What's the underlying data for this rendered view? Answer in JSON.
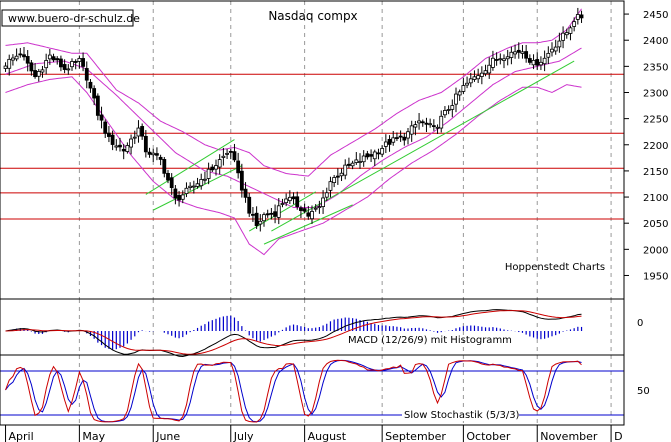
{
  "chart_data": [
    {
      "type": "candlestick",
      "title": "Nasdaq compx",
      "watermark": "www.buero-dr-schulz.de",
      "source_label": "Hoppenstedt Charts",
      "yticks": [
        1950,
        2000,
        2050,
        2100,
        2150,
        2200,
        2250,
        2300,
        2350,
        2400,
        2450
      ],
      "ylim": [
        1905,
        2475
      ],
      "horizontal_levels": [
        2335,
        2222,
        2155,
        2108,
        2058
      ],
      "months": [
        "April",
        "May",
        "June",
        "July",
        "August",
        "September",
        "October",
        "November",
        "D"
      ],
      "month_starts": [
        0,
        20,
        40,
        61,
        81,
        102,
        124,
        144,
        164
      ],
      "n_bars": 166,
      "x_range": [
        -1.5,
        167.5
      ],
      "close_anchors": [
        [
          0,
          2355
        ],
        [
          4,
          2375
        ],
        [
          8,
          2330
        ],
        [
          12,
          2370
        ],
        [
          16,
          2345
        ],
        [
          20,
          2360
        ],
        [
          22,
          2330
        ],
        [
          25,
          2260
        ],
        [
          28,
          2210
        ],
        [
          32,
          2190
        ],
        [
          36,
          2230
        ],
        [
          38,
          2190
        ],
        [
          42,
          2170
        ],
        [
          46,
          2095
        ],
        [
          50,
          2115
        ],
        [
          54,
          2140
        ],
        [
          58,
          2170
        ],
        [
          61,
          2190
        ],
        [
          63,
          2140
        ],
        [
          66,
          2075
        ],
        [
          68,
          2045
        ],
        [
          70,
          2065
        ],
        [
          73,
          2070
        ],
        [
          76,
          2100
        ],
        [
          80,
          2080
        ],
        [
          82,
          2065
        ],
        [
          85,
          2080
        ],
        [
          88,
          2130
        ],
        [
          92,
          2155
        ],
        [
          96,
          2170
        ],
        [
          100,
          2185
        ],
        [
          104,
          2205
        ],
        [
          108,
          2215
        ],
        [
          112,
          2245
        ],
        [
          116,
          2230
        ],
        [
          120,
          2270
        ],
        [
          124,
          2310
        ],
        [
          128,
          2335
        ],
        [
          132,
          2360
        ],
        [
          136,
          2375
        ],
        [
          140,
          2380
        ],
        [
          143,
          2355
        ],
        [
          146,
          2365
        ],
        [
          148,
          2385
        ],
        [
          150,
          2400
        ],
        [
          152,
          2415
        ],
        [
          154,
          2440
        ],
        [
          156,
          2445
        ]
      ],
      "upper_band_anchors": [
        [
          0,
          2390
        ],
        [
          6,
          2395
        ],
        [
          12,
          2385
        ],
        [
          18,
          2375
        ],
        [
          22,
          2375
        ],
        [
          26,
          2340
        ],
        [
          30,
          2305
        ],
        [
          36,
          2280
        ],
        [
          42,
          2245
        ],
        [
          48,
          2225
        ],
        [
          54,
          2200
        ],
        [
          58,
          2190
        ],
        [
          62,
          2195
        ],
        [
          66,
          2185
        ],
        [
          70,
          2160
        ],
        [
          76,
          2145
        ],
        [
          82,
          2140
        ],
        [
          88,
          2180
        ],
        [
          94,
          2205
        ],
        [
          100,
          2230
        ],
        [
          106,
          2260
        ],
        [
          112,
          2285
        ],
        [
          118,
          2300
        ],
        [
          124,
          2330
        ],
        [
          130,
          2365
        ],
        [
          136,
          2385
        ],
        [
          140,
          2395
        ],
        [
          144,
          2395
        ],
        [
          148,
          2400
        ],
        [
          152,
          2420
        ],
        [
          156,
          2460
        ]
      ],
      "middle_band_anchors": [
        [
          0,
          2335
        ],
        [
          8,
          2355
        ],
        [
          16,
          2360
        ],
        [
          22,
          2345
        ],
        [
          30,
          2295
        ],
        [
          38,
          2240
        ],
        [
          46,
          2185
        ],
        [
          54,
          2150
        ],
        [
          60,
          2140
        ],
        [
          66,
          2120
        ],
        [
          72,
          2100
        ],
        [
          78,
          2080
        ],
        [
          84,
          2080
        ],
        [
          90,
          2105
        ],
        [
          96,
          2140
        ],
        [
          102,
          2170
        ],
        [
          108,
          2195
        ],
        [
          114,
          2215
        ],
        [
          120,
          2245
        ],
        [
          126,
          2280
        ],
        [
          132,
          2315
        ],
        [
          138,
          2340
        ],
        [
          144,
          2350
        ],
        [
          150,
          2360
        ],
        [
          156,
          2385
        ]
      ],
      "lower_band_anchors": [
        [
          0,
          2300
        ],
        [
          6,
          2315
        ],
        [
          12,
          2325
        ],
        [
          18,
          2330
        ],
        [
          22,
          2300
        ],
        [
          28,
          2240
        ],
        [
          34,
          2180
        ],
        [
          40,
          2130
        ],
        [
          46,
          2095
        ],
        [
          52,
          2080
        ],
        [
          58,
          2070
        ],
        [
          62,
          2060
        ],
        [
          66,
          2010
        ],
        [
          70,
          1990
        ],
        [
          74,
          2020
        ],
        [
          80,
          2035
        ],
        [
          86,
          2050
        ],
        [
          92,
          2075
        ],
        [
          98,
          2100
        ],
        [
          104,
          2135
        ],
        [
          110,
          2165
        ],
        [
          116,
          2190
        ],
        [
          122,
          2220
        ],
        [
          128,
          2255
        ],
        [
          134,
          2285
        ],
        [
          140,
          2310
        ],
        [
          144,
          2310
        ],
        [
          148,
          2300
        ],
        [
          152,
          2315
        ],
        [
          156,
          2310
        ]
      ],
      "trend_lines": [
        {
          "from": [
            38,
            2105
          ],
          "to": [
            62,
            2210
          ]
        },
        {
          "from": [
            40,
            2075
          ],
          "to": [
            64,
            2160
          ]
        },
        {
          "from": [
            66,
            2035
          ],
          "to": [
            84,
            2110
          ]
        },
        {
          "from": [
            70,
            2010
          ],
          "to": [
            94,
            2085
          ]
        },
        {
          "from": [
            72,
            2035
          ],
          "to": [
            154,
            2360
          ]
        }
      ],
      "colors": {
        "candles": "#000000",
        "levels": "#cc0000",
        "bands": "#cc33cc",
        "trend": "#33cc33",
        "grid": "#999999"
      }
    },
    {
      "type": "macd_histogram",
      "label": "MACD (12/26/9) mit Histogramm",
      "ytick_label": "0",
      "colors": {
        "macd": "#000000",
        "signal": "#cc0000",
        "histogram": "#0000cc"
      }
    },
    {
      "type": "line",
      "label": "Slow Stochastik (5/3/3)",
      "ytick_label": "50",
      "levels": [
        80,
        20
      ],
      "colors": {
        "k": "#cc0000",
        "d": "#0000cc",
        "levels": "#0000cc"
      }
    }
  ]
}
